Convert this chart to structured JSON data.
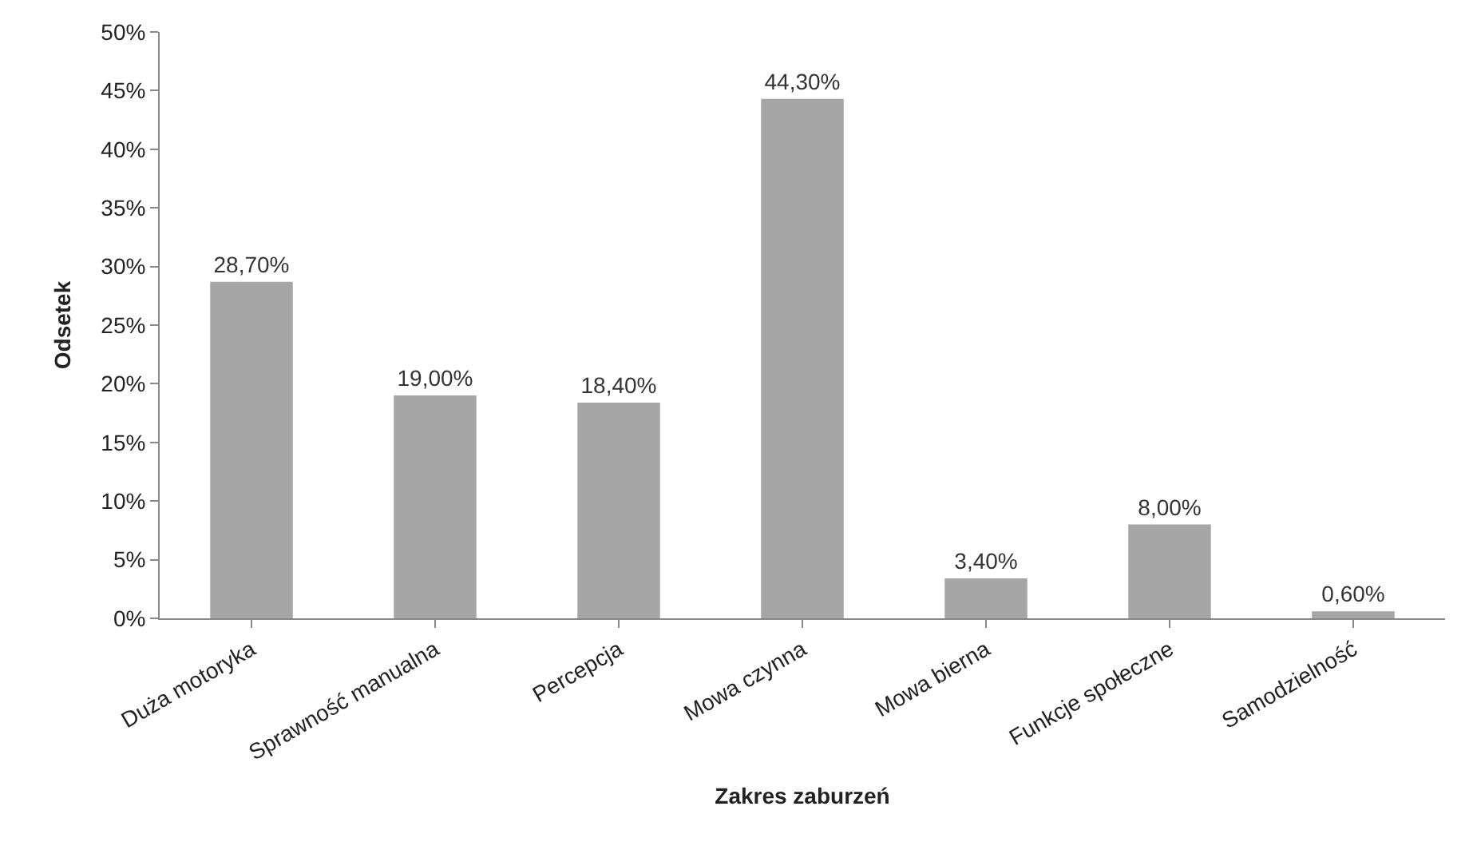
{
  "chart_data": {
    "type": "bar",
    "xlabel": "Zakres zaburzeń",
    "ylabel": "Odsetek",
    "categories": [
      "Duża motoryka",
      "Sprawność manualna",
      "Percepcja",
      "Mowa czynna",
      "Mowa bierna",
      "Funkcje społeczne",
      "Samodzielność"
    ],
    "values": [
      28.7,
      19.0,
      18.4,
      44.3,
      3.4,
      8.0,
      0.6
    ],
    "value_labels": [
      "28,70%",
      "19,00%",
      "18,40%",
      "44,30%",
      "3,40%",
      "8,00%",
      "0,60%"
    ],
    "color": "#a6a6a6",
    "ylim": [
      0,
      50
    ],
    "yticks": [
      {
        "value": 0,
        "label": "0%"
      },
      {
        "value": 5,
        "label": "5%"
      },
      {
        "value": 10,
        "label": "10%"
      },
      {
        "value": 15,
        "label": "15%"
      },
      {
        "value": 20,
        "label": "20%"
      },
      {
        "value": 25,
        "label": "25%"
      },
      {
        "value": 30,
        "label": "30%"
      },
      {
        "value": 35,
        "label": "35%"
      },
      {
        "value": 40,
        "label": "40%"
      },
      {
        "value": 45,
        "label": "45%"
      },
      {
        "value": 50,
        "label": "50%"
      }
    ]
  }
}
